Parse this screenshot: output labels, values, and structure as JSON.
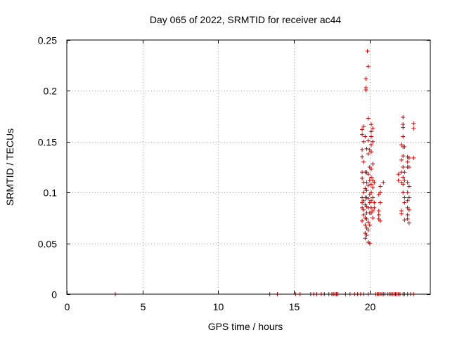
{
  "chart_data": {
    "type": "scatter",
    "title": "Day 065 of 2022, SRMTID for receiver ac44",
    "xlabel": "GPS time / hours",
    "ylabel": "SRMTID / TECUs",
    "xlim": [
      0,
      24
    ],
    "ylim": [
      0,
      0.25
    ],
    "x_ticks": [
      0,
      5,
      10,
      15,
      20
    ],
    "x_tick_labels": [
      "0",
      "5",
      "10",
      "15",
      "20"
    ],
    "y_ticks": [
      0,
      0.05,
      0.1,
      0.15,
      0.2,
      0.25
    ],
    "y_tick_labels": [
      "0",
      "0.05",
      "0.1",
      "0.15",
      "0.2",
      "0.25"
    ],
    "grid": true,
    "marker": "+",
    "color": "#cc0000",
    "series": [
      {
        "name": "SRMTID",
        "points": [
          [
            3.2,
            0
          ],
          [
            13.4,
            0
          ],
          [
            13.9,
            0
          ],
          [
            15.1,
            0
          ],
          [
            15.4,
            0
          ],
          [
            16.1,
            0
          ],
          [
            16.3,
            0
          ],
          [
            16.5,
            0
          ],
          [
            16.8,
            0
          ],
          [
            17.0,
            0
          ],
          [
            17.3,
            0
          ],
          [
            17.5,
            0
          ],
          [
            17.6,
            0
          ],
          [
            17.7,
            0
          ],
          [
            17.8,
            0
          ],
          [
            17.9,
            0
          ],
          [
            18.4,
            0
          ],
          [
            18.7,
            0
          ],
          [
            19.0,
            0
          ],
          [
            19.2,
            0
          ],
          [
            19.4,
            0
          ],
          [
            19.6,
            0
          ],
          [
            19.9,
            0
          ],
          [
            20.4,
            0
          ],
          [
            20.5,
            0
          ],
          [
            20.6,
            0
          ],
          [
            20.7,
            0
          ],
          [
            20.8,
            0
          ],
          [
            20.9,
            0
          ],
          [
            21.0,
            0
          ],
          [
            21.2,
            0
          ],
          [
            21.3,
            0
          ],
          [
            21.4,
            0
          ],
          [
            21.5,
            0
          ],
          [
            21.6,
            0
          ],
          [
            21.7,
            0
          ],
          [
            21.8,
            0
          ],
          [
            21.9,
            0
          ],
          [
            22.0,
            0
          ],
          [
            22.2,
            0
          ],
          [
            22.3,
            0
          ],
          [
            22.5,
            0
          ],
          [
            22.7,
            0
          ],
          [
            22.9,
            0
          ],
          [
            19.5,
            0.162
          ],
          [
            19.5,
            0.157
          ],
          [
            19.5,
            0.142
          ],
          [
            19.5,
            0.135
          ],
          [
            19.5,
            0.12
          ],
          [
            19.5,
            0.114
          ],
          [
            19.5,
            0.095
          ],
          [
            19.5,
            0.09
          ],
          [
            19.5,
            0.085
          ],
          [
            19.5,
            0.072
          ],
          [
            19.6,
            0.165
          ],
          [
            19.6,
            0.15
          ],
          [
            19.6,
            0.13
          ],
          [
            19.6,
            0.11
          ],
          [
            19.6,
            0.1
          ],
          [
            19.6,
            0.092
          ],
          [
            19.6,
            0.083
          ],
          [
            19.6,
            0.078
          ],
          [
            19.7,
            0.155
          ],
          [
            19.7,
            0.12
          ],
          [
            19.7,
            0.104
          ],
          [
            19.7,
            0.095
          ],
          [
            19.7,
            0.088
          ],
          [
            19.7,
            0.075
          ],
          [
            19.7,
            0.068
          ],
          [
            19.7,
            0.06
          ],
          [
            19.7,
            0.055
          ],
          [
            19.75,
            0.212
          ],
          [
            19.75,
            0.203
          ],
          [
            19.75,
            0.201
          ],
          [
            19.8,
            0.143
          ],
          [
            19.8,
            0.12
          ],
          [
            19.8,
            0.11
          ],
          [
            19.8,
            0.102
          ],
          [
            19.8,
            0.095
          ],
          [
            19.8,
            0.086
          ],
          [
            19.8,
            0.08
          ],
          [
            19.8,
            0.074
          ],
          [
            19.8,
            0.065
          ],
          [
            19.8,
            0.058
          ],
          [
            19.85,
            0.239
          ],
          [
            19.9,
            0.224
          ],
          [
            19.9,
            0.173
          ],
          [
            19.9,
            0.151
          ],
          [
            19.9,
            0.138
          ],
          [
            19.9,
            0.118
          ],
          [
            19.9,
            0.107
          ],
          [
            19.9,
            0.094
          ],
          [
            19.9,
            0.085
          ],
          [
            19.9,
            0.071
          ],
          [
            19.9,
            0.063
          ],
          [
            19.9,
            0.051
          ],
          [
            20.0,
            0.142
          ],
          [
            20.0,
            0.125
          ],
          [
            20.0,
            0.112
          ],
          [
            20.0,
            0.098
          ],
          [
            20.0,
            0.09
          ],
          [
            20.0,
            0.08
          ],
          [
            20.0,
            0.068
          ],
          [
            20.0,
            0.05
          ],
          [
            20.1,
            0.167
          ],
          [
            20.1,
            0.16
          ],
          [
            20.1,
            0.155
          ],
          [
            20.1,
            0.147
          ],
          [
            20.1,
            0.14
          ],
          [
            20.1,
            0.123
          ],
          [
            20.1,
            0.115
          ],
          [
            20.1,
            0.108
          ],
          [
            20.1,
            0.1
          ],
          [
            20.1,
            0.092
          ],
          [
            20.1,
            0.085
          ],
          [
            20.1,
            0.08
          ],
          [
            20.2,
            0.163
          ],
          [
            20.2,
            0.15
          ],
          [
            20.2,
            0.128
          ],
          [
            20.2,
            0.112
          ],
          [
            20.2,
            0.105
          ],
          [
            20.2,
            0.095
          ],
          [
            20.2,
            0.082
          ],
          [
            20.2,
            0.075
          ],
          [
            20.3,
            0.11
          ],
          [
            20.3,
            0.09
          ],
          [
            20.3,
            0.085
          ],
          [
            20.6,
            0.098
          ],
          [
            20.6,
            0.082
          ],
          [
            20.6,
            0.078
          ],
          [
            20.6,
            0.074
          ],
          [
            20.7,
            0.106
          ],
          [
            20.7,
            0.1
          ],
          [
            20.7,
            0.09
          ],
          [
            20.7,
            0.072
          ],
          [
            20.9,
            0.11
          ],
          [
            21.9,
            0.118
          ],
          [
            21.9,
            0.112
          ],
          [
            22.1,
            0.147
          ],
          [
            22.1,
            0.132
          ],
          [
            22.1,
            0.12
          ],
          [
            22.1,
            0.11
          ],
          [
            22.1,
            0.082
          ],
          [
            22.1,
            0.079
          ],
          [
            22.2,
            0.174
          ],
          [
            22.2,
            0.167
          ],
          [
            22.2,
            0.164
          ],
          [
            22.2,
            0.155
          ],
          [
            22.2,
            0.145
          ],
          [
            22.2,
            0.136
          ],
          [
            22.2,
            0.125
          ],
          [
            22.2,
            0.115
          ],
          [
            22.2,
            0.108
          ],
          [
            22.2,
            0.1
          ],
          [
            22.3,
            0.145
          ],
          [
            22.3,
            0.12
          ],
          [
            22.3,
            0.112
          ],
          [
            22.3,
            0.095
          ],
          [
            22.3,
            0.09
          ],
          [
            22.3,
            0.073
          ],
          [
            22.5,
            0.135
          ],
          [
            22.5,
            0.13
          ],
          [
            22.5,
            0.125
          ],
          [
            22.5,
            0.11
          ],
          [
            22.5,
            0.1
          ],
          [
            22.5,
            0.092
          ],
          [
            22.5,
            0.085
          ],
          [
            22.5,
            0.078
          ],
          [
            22.5,
            0.074
          ],
          [
            22.6,
            0.134
          ],
          [
            22.6,
            0.125
          ],
          [
            22.6,
            0.106
          ],
          [
            22.6,
            0.095
          ],
          [
            22.6,
            0.083
          ],
          [
            22.6,
            0.07
          ],
          [
            22.9,
            0.168
          ],
          [
            22.9,
            0.163
          ],
          [
            22.9,
            0.134
          ]
        ]
      }
    ]
  }
}
